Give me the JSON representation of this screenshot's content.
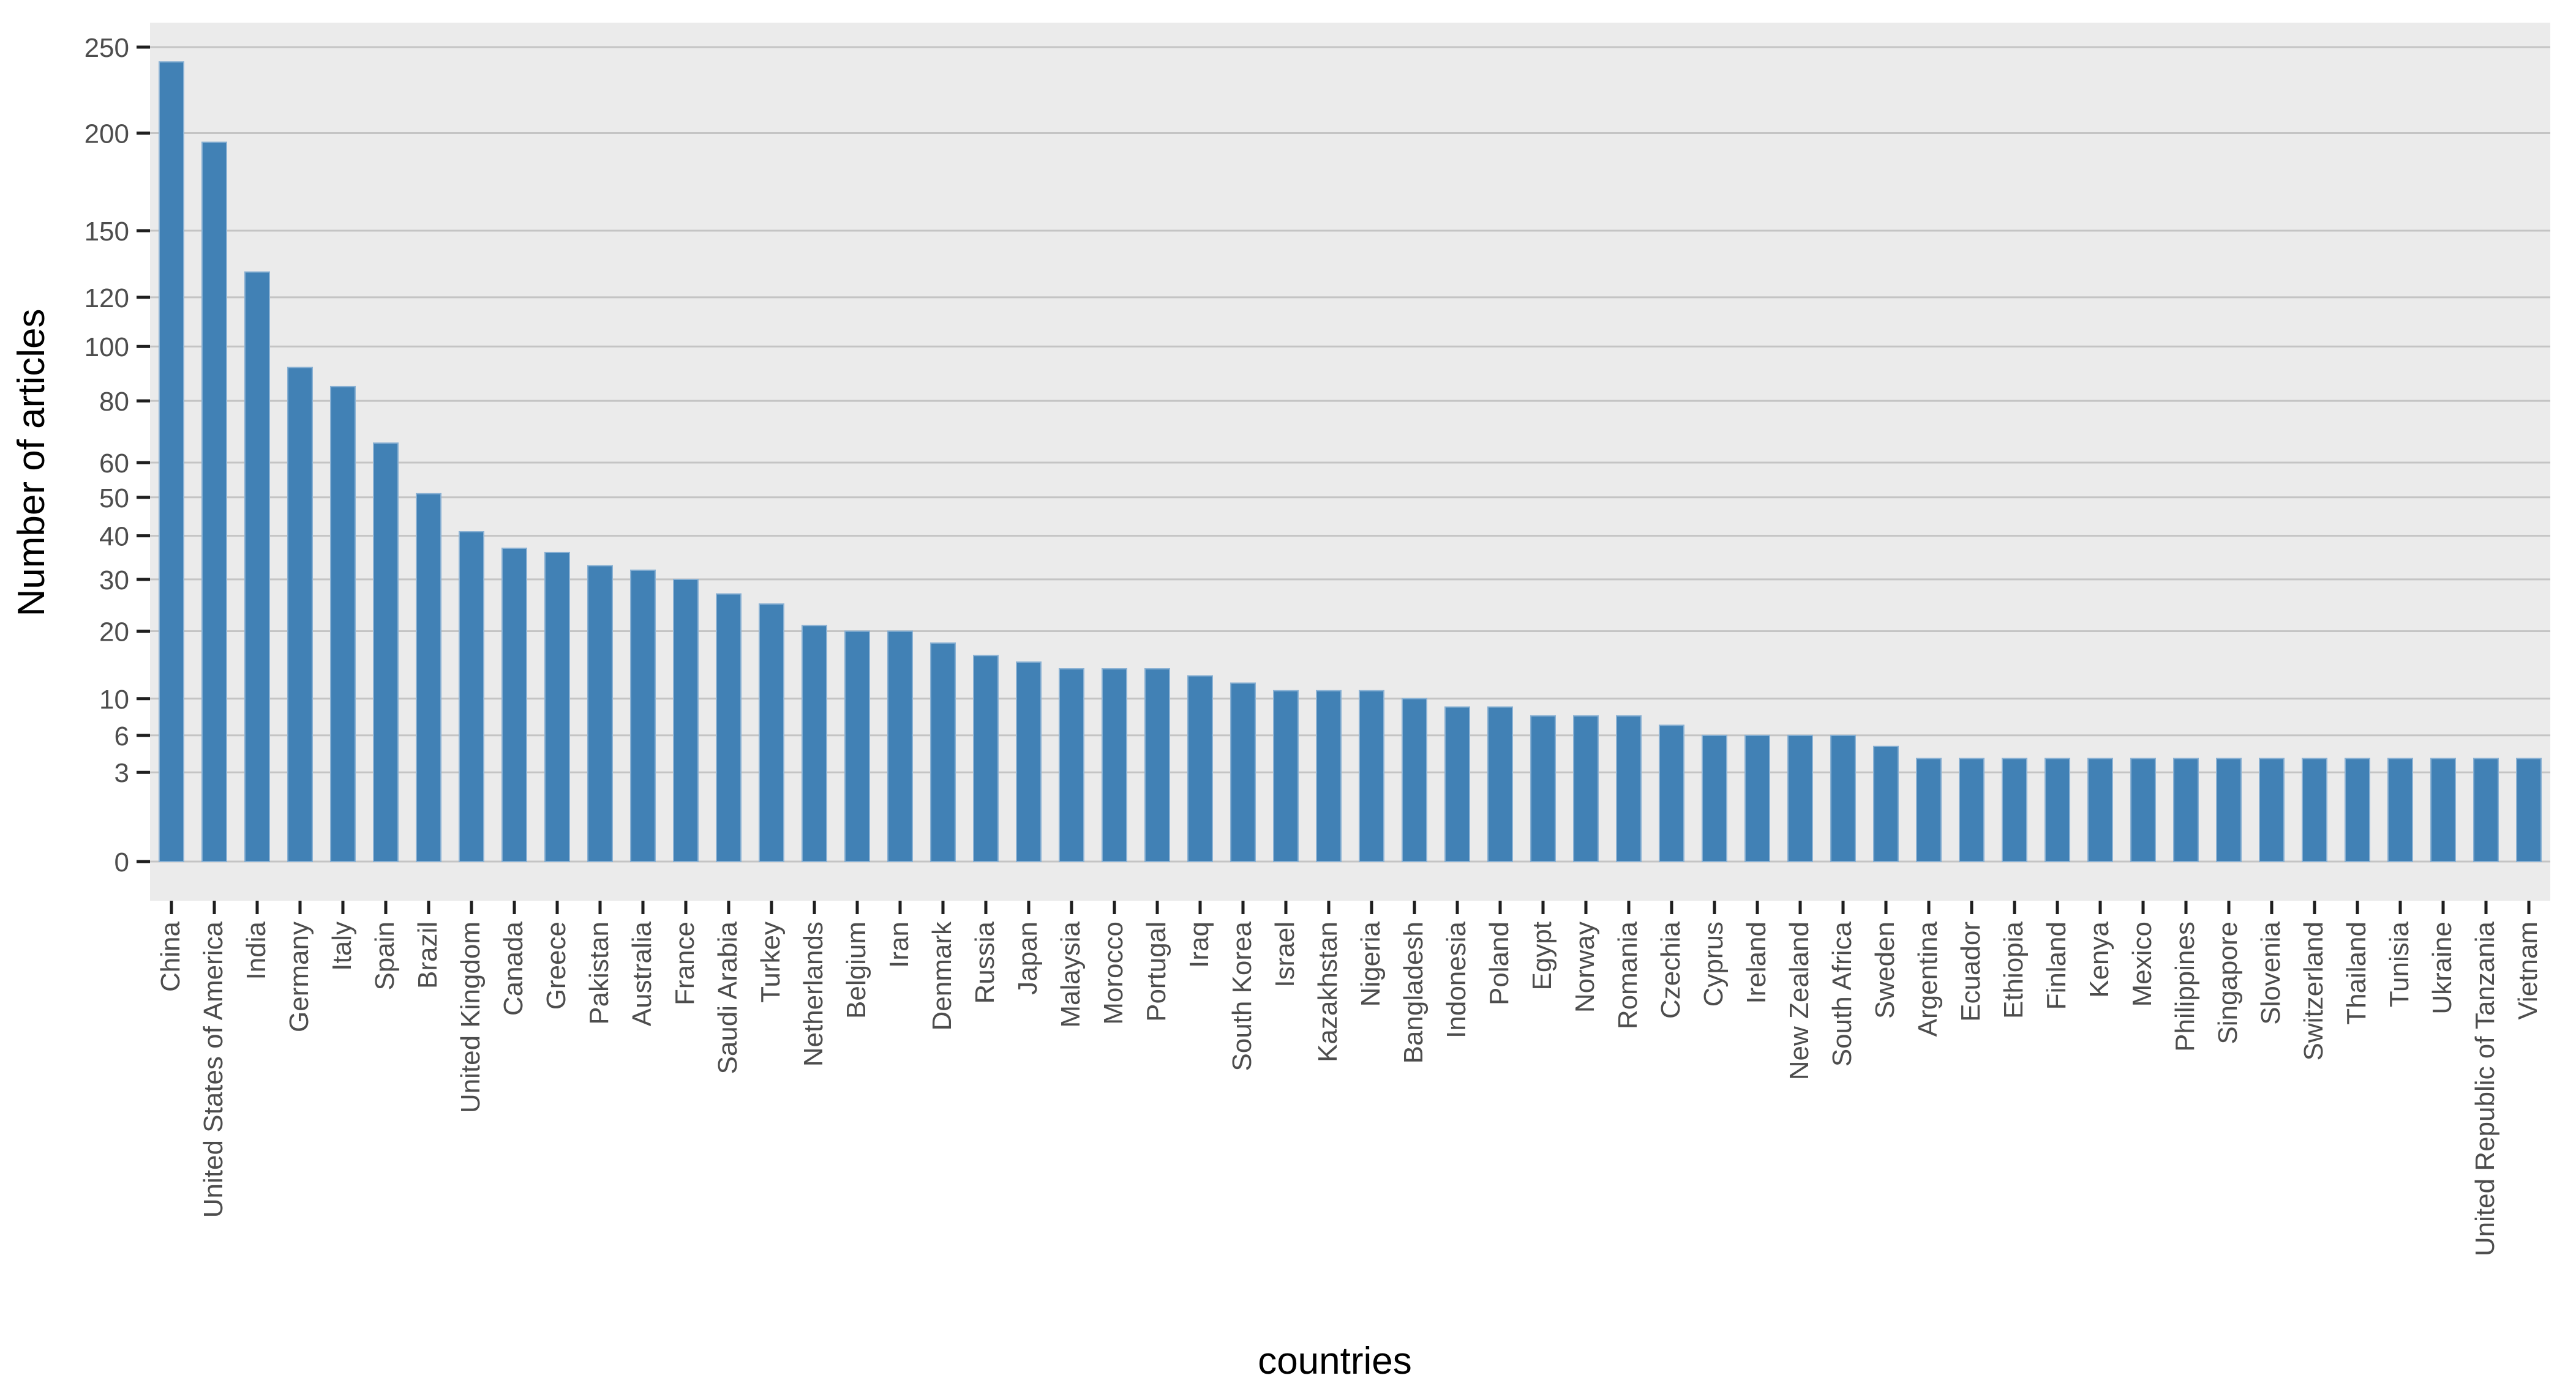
{
  "figure": {
    "background_color": "#ffffff",
    "panel_background_color": "#ebebeb",
    "gridline_color": "#c4c4c4",
    "tick_mark_color": "#1f1f1f",
    "tick_label_color": "#4d4d4d",
    "axis_title_color": "#000000",
    "bar_fill_color": "#4181b5",
    "bar_edge_color": "#8ab1d3"
  },
  "chart_data": {
    "type": "bar",
    "title": "",
    "xlabel": "countries",
    "ylabel": "Number of articles",
    "scale_y": "sqrt",
    "grid": true,
    "legend_position": "none",
    "ylim": [
      0,
      264
    ],
    "ytick_labels": [
      "0",
      "3",
      "6",
      "10",
      "20",
      "30",
      "40",
      "50",
      "60",
      "80",
      "100",
      "120",
      "150",
      "200",
      "250"
    ],
    "yticks": [
      0,
      3,
      6,
      10,
      20,
      30,
      40,
      50,
      60,
      80,
      100,
      120,
      150,
      200,
      250
    ],
    "categories": [
      "China",
      "United States of America",
      "India",
      "Germany",
      "Italy",
      "Spain",
      "Brazil",
      "United Kingdom",
      "Canada",
      "Greece",
      "Pakistan",
      "Australia",
      "France",
      "Saudi Arabia",
      "Turkey",
      "Netherlands",
      "Belgium",
      "Iran",
      "Denmark",
      "Russia",
      "Japan",
      "Malaysia",
      "Morocco",
      "Portugal",
      "Iraq",
      "South Korea",
      "Israel",
      "Kazakhstan",
      "Nigeria",
      "Bangladesh",
      "Indonesia",
      "Poland",
      "Egypt",
      "Norway",
      "Romania",
      "Czechia",
      "Cyprus",
      "Ireland",
      "New Zealand",
      "South Africa",
      "Sweden",
      "Argentina",
      "Ecuador",
      "Ethiopia",
      "Finland",
      "Kenya",
      "Mexico",
      "Philippines",
      "Singapore",
      "Slovenia",
      "Switzerland",
      "Thailand",
      "Tunisia",
      "Ukraine",
      "United Republic of Tanzania",
      "Vietnam"
    ],
    "values": [
      241,
      195,
      131,
      92,
      85,
      66,
      51,
      41,
      37,
      36,
      33,
      32,
      30,
      27,
      25,
      21,
      20,
      20,
      18,
      16,
      15,
      14,
      14,
      14,
      13,
      12,
      11,
      11,
      11,
      10,
      9,
      9,
      8,
      8,
      8,
      7,
      6,
      6,
      6,
      6,
      5,
      4,
      4,
      4,
      4,
      4,
      4,
      4,
      4,
      4,
      4,
      4,
      4,
      4,
      4,
      4
    ]
  }
}
